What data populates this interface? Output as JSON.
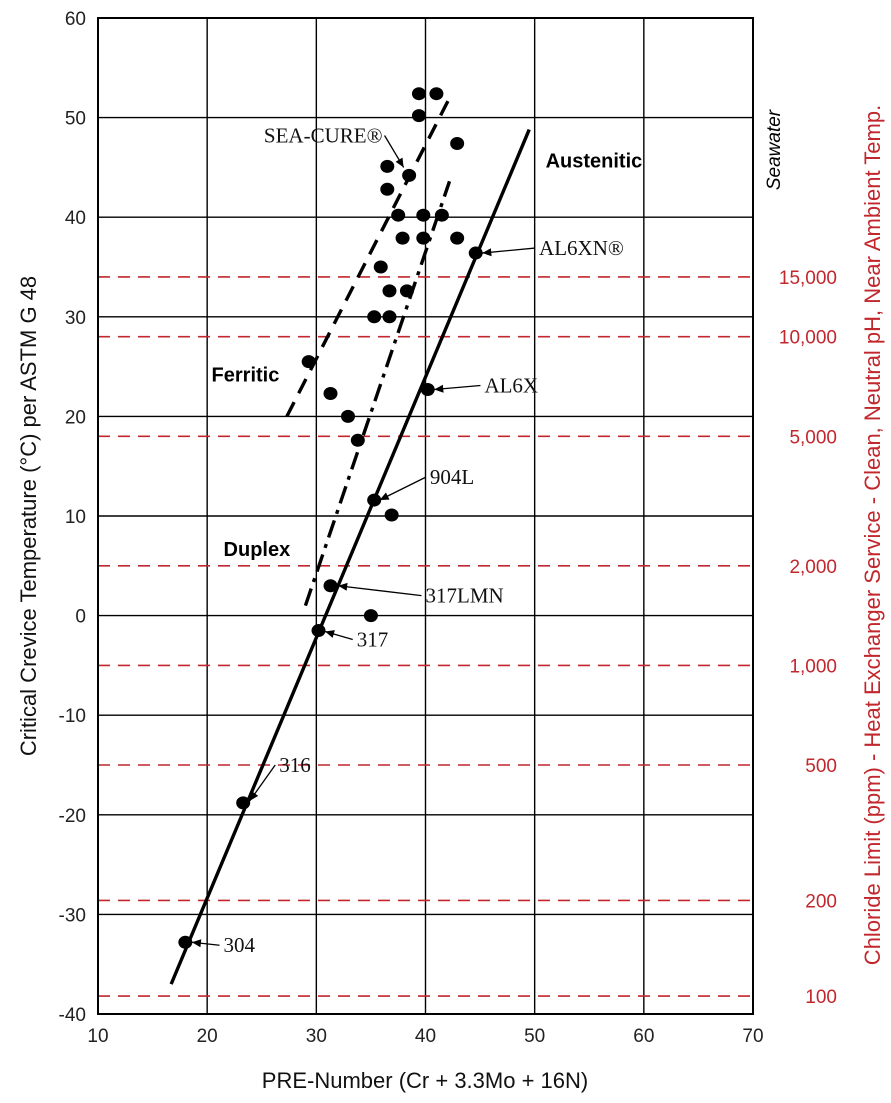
{
  "chart_data": {
    "type": "scatter",
    "xlabel": "PRE-Number (Cr + 3.3Mo + 16N)",
    "ylabel": "Critical Crevice Temperature (°C) per ASTM G 48",
    "y2label": "Chloride Limit (ppm) - Heat Exchanger Service - Clean, Neutral pH, Near Ambient Temp.",
    "xlim": [
      10,
      70
    ],
    "ylim": [
      -40,
      60
    ],
    "xticks": [
      "10",
      "20",
      "30",
      "40",
      "50",
      "60",
      "70"
    ],
    "yticks": [
      "-40",
      "-30",
      "-20",
      "-10",
      "0",
      "10",
      "20",
      "30",
      "40",
      "50",
      "60"
    ],
    "grid": true,
    "points": [
      {
        "x": 18.0,
        "y": -32.8
      },
      {
        "x": 23.3,
        "y": -18.8
      },
      {
        "x": 30.2,
        "y": -1.5
      },
      {
        "x": 31.3,
        "y": 3.0
      },
      {
        "x": 35.0,
        "y": 0.0
      },
      {
        "x": 35.3,
        "y": 11.6
      },
      {
        "x": 36.9,
        "y": 10.1
      },
      {
        "x": 33.8,
        "y": 17.6
      },
      {
        "x": 32.9,
        "y": 20.0
      },
      {
        "x": 31.3,
        "y": 22.3
      },
      {
        "x": 29.3,
        "y": 25.5
      },
      {
        "x": 40.2,
        "y": 22.7
      },
      {
        "x": 35.3,
        "y": 30.0
      },
      {
        "x": 36.7,
        "y": 30.0
      },
      {
        "x": 36.7,
        "y": 32.6
      },
      {
        "x": 38.3,
        "y": 32.6
      },
      {
        "x": 35.9,
        "y": 35.0
      },
      {
        "x": 37.5,
        "y": 40.2
      },
      {
        "x": 37.9,
        "y": 37.9
      },
      {
        "x": 39.8,
        "y": 37.9
      },
      {
        "x": 39.8,
        "y": 40.2
      },
      {
        "x": 41.5,
        "y": 40.2
      },
      {
        "x": 42.9,
        "y": 37.9
      },
      {
        "x": 44.6,
        "y": 36.4
      },
      {
        "x": 36.5,
        "y": 42.8
      },
      {
        "x": 36.5,
        "y": 45.1
      },
      {
        "x": 38.5,
        "y": 44.2
      },
      {
        "x": 42.9,
        "y": 47.4
      },
      {
        "x": 39.4,
        "y": 50.2
      },
      {
        "x": 39.4,
        "y": 52.4
      },
      {
        "x": 41.0,
        "y": 52.4
      }
    ],
    "lines": [
      {
        "style": "solid",
        "from": [
          16.7,
          -37.0
        ],
        "to": [
          49.5,
          48.8
        ]
      },
      {
        "style": "dashed",
        "from": [
          27.3,
          20.0
        ],
        "to": [
          42.4,
          52.4
        ]
      },
      {
        "style": "dashdot",
        "from": [
          29.0,
          1.0
        ],
        "to": [
          42.2,
          43.6
        ]
      }
    ],
    "chloride_limits": [
      {
        "label": "100",
        "y": -38.2
      },
      {
        "label": "200",
        "y": -28.6
      },
      {
        "label": "500",
        "y": -15.0
      },
      {
        "label": "1,000",
        "y": -5.0
      },
      {
        "label": "2,000",
        "y": 5.0
      },
      {
        "label": "5,000",
        "y": 18.0
      },
      {
        "label": "10,000",
        "y": 28.0
      },
      {
        "label": "15,000",
        "y": 34.0
      }
    ],
    "seawater_label": "Seawater",
    "family_labels": [
      {
        "text": "Austenitic",
        "x": 51.0,
        "y": 45.0
      },
      {
        "text": "Ferritic",
        "x": 20.4,
        "y": 23.5
      },
      {
        "text": "Duplex",
        "x": 21.5,
        "y": 6.0
      }
    ],
    "grade_labels": [
      {
        "text": "SEA-CURE®",
        "x": 25.2,
        "y": 47.5,
        "ax": 38.0,
        "ay": 45.0
      },
      {
        "text": "AL6XN®",
        "x": 50.4,
        "y": 36.2,
        "ax": 45.2,
        "ay": 36.4
      },
      {
        "text": "AL6X",
        "x": 45.4,
        "y": 22.4,
        "ax": 40.8,
        "ay": 22.7
      },
      {
        "text": "904L",
        "x": 40.4,
        "y": 13.2,
        "ax": 35.8,
        "ay": 11.6
      },
      {
        "text": "317LMN",
        "x": 40.0,
        "y": 1.3,
        "ax": 32.0,
        "ay": 3.0
      },
      {
        "text": "317",
        "x": 33.7,
        "y": -3.1,
        "ax": 30.8,
        "ay": -1.6
      },
      {
        "text": "316",
        "x": 26.6,
        "y": -15.7,
        "ax": 23.9,
        "ay": -18.6
      },
      {
        "text": "304",
        "x": 21.5,
        "y": -33.8,
        "ax": 18.6,
        "ay": -32.8
      }
    ]
  },
  "colors": {
    "axis": "#000000",
    "grid": "#000000",
    "points": "#000000",
    "chloride": "#c1272d"
  }
}
